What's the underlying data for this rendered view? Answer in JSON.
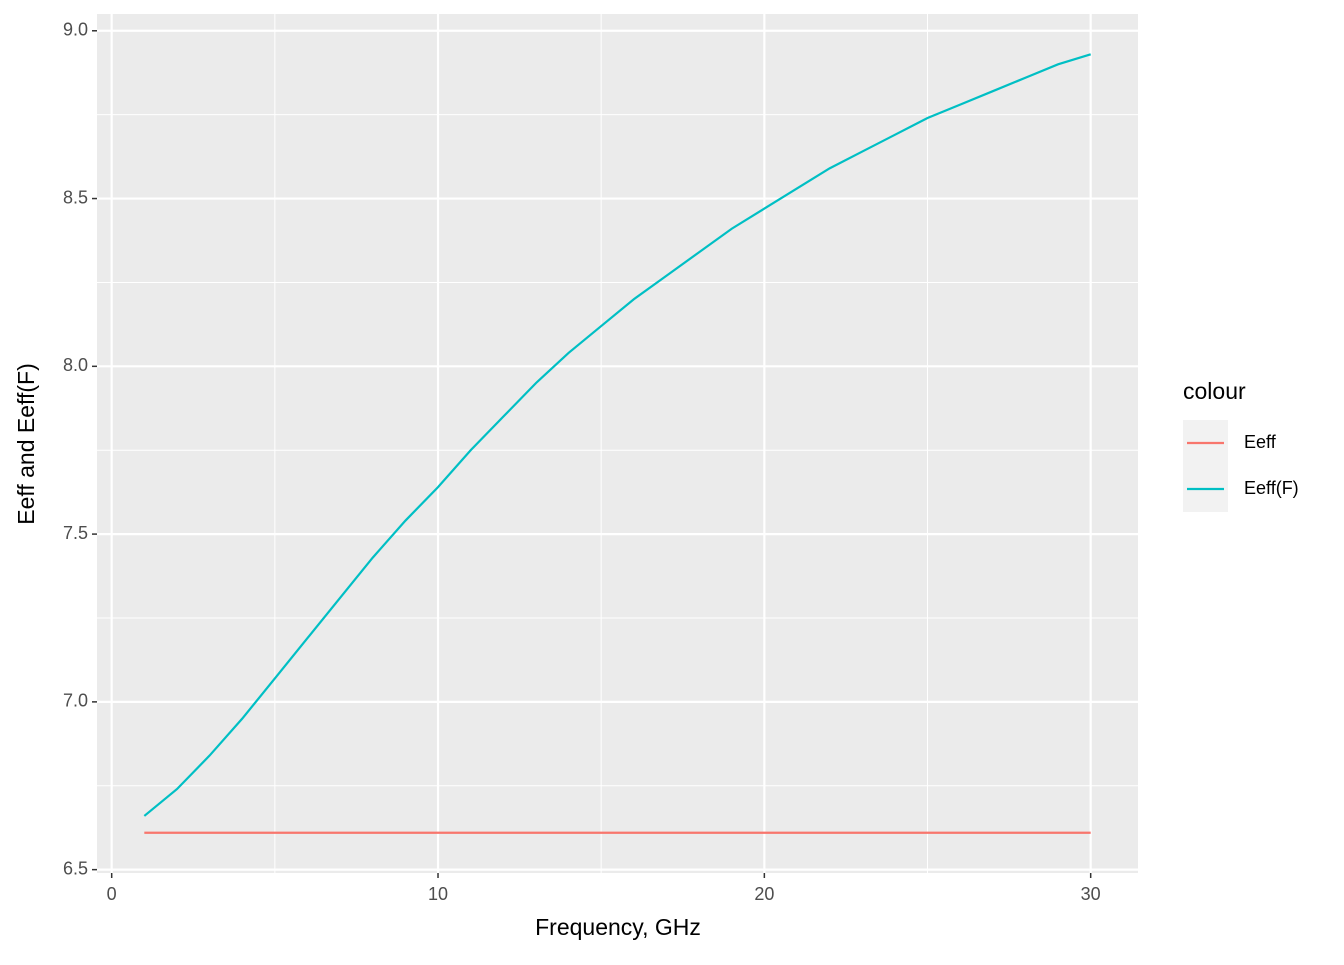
{
  "chart_data": {
    "type": "line",
    "x_label": "Frequency, GHz",
    "y_label": "Eeff and Eeff(F)",
    "x": [
      1,
      2,
      3,
      4,
      5,
      6,
      7,
      8,
      9,
      10,
      11,
      12,
      13,
      14,
      15,
      16,
      17,
      18,
      19,
      20,
      21,
      22,
      23,
      24,
      25,
      26,
      27,
      28,
      29,
      30
    ],
    "series": [
      {
        "name": "Eeff",
        "color": "#F8766D",
        "values": [
          6.61,
          6.61,
          6.61,
          6.61,
          6.61,
          6.61,
          6.61,
          6.61,
          6.61,
          6.61,
          6.61,
          6.61,
          6.61,
          6.61,
          6.61,
          6.61,
          6.61,
          6.61,
          6.61,
          6.61,
          6.61,
          6.61,
          6.61,
          6.61,
          6.61,
          6.61,
          6.61,
          6.61,
          6.61,
          6.61
        ]
      },
      {
        "name": "Eeff(F)",
        "color": "#00BFC4",
        "values": [
          6.66,
          6.74,
          6.84,
          6.95,
          7.07,
          7.19,
          7.31,
          7.43,
          7.54,
          7.64,
          7.75,
          7.85,
          7.95,
          8.04,
          8.12,
          8.2,
          8.27,
          8.34,
          8.41,
          8.47,
          8.53,
          8.59,
          8.64,
          8.69,
          8.74,
          8.78,
          8.82,
          8.86,
          8.9,
          8.93
        ]
      }
    ],
    "xlim": [
      -0.45,
      31.45
    ],
    "xticks": [
      0,
      10,
      20,
      30
    ],
    "ylim": [
      6.49,
      9.05
    ],
    "yticks": [
      {
        "value": 6.5,
        "label": "6.5"
      },
      {
        "value": 7,
        "label": "7.0"
      },
      {
        "value": 7.5,
        "label": "7.5"
      },
      {
        "value": 8,
        "label": "8.0"
      },
      {
        "value": 8.5,
        "label": "8.5"
      },
      {
        "value": 9,
        "label": "9.0"
      }
    ],
    "grid": true,
    "legend_title": "colour",
    "legend_position": "right"
  }
}
